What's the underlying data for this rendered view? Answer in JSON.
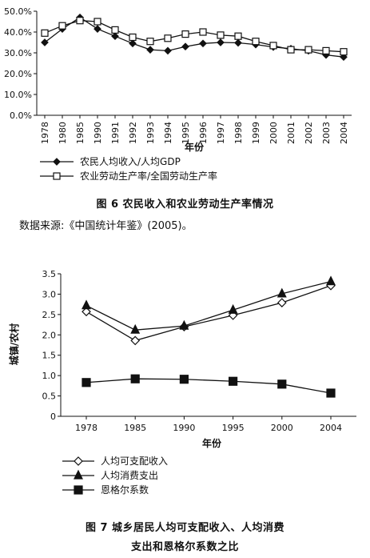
{
  "chart_data": [
    {
      "type": "line",
      "categories": [
        "1978",
        "1980",
        "1985",
        "1990",
        "1991",
        "1992",
        "1993",
        "1994",
        "1995",
        "1996",
        "1997",
        "1998",
        "1999",
        "2000",
        "2001",
        "2002",
        "2003",
        "2004"
      ],
      "y_ticks": [
        "0.0%",
        "10.0%",
        "20.0%",
        "30.0%",
        "40.0%",
        "50.0%"
      ],
      "ylim": [
        0,
        50
      ],
      "xlabel": "年份",
      "ylabel": "",
      "series": [
        {
          "name": "农民人均收入/人均GDP",
          "marker": "filled-diamond",
          "values": [
            35.0,
            41.5,
            47.0,
            41.5,
            38.0,
            34.5,
            31.5,
            31.0,
            33.0,
            34.5,
            35.0,
            34.8,
            34.0,
            32.8,
            32.0,
            31.0,
            29.0,
            28.0
          ]
        },
        {
          "name": "农业劳动生产率/全国劳动生产率",
          "marker": "open-square",
          "values": [
            39.5,
            43.0,
            45.5,
            45.0,
            41.0,
            37.5,
            35.5,
            37.0,
            39.0,
            40.0,
            38.5,
            38.0,
            35.5,
            33.5,
            31.5,
            31.5,
            31.0,
            30.5
          ]
        }
      ],
      "legend_position": "bottom",
      "grid": false,
      "caption": "图 6   农民收入和农业劳动生产率情况",
      "source": "数据来源:《中国统计年鉴》(2005)。"
    },
    {
      "type": "line",
      "categories": [
        "1978",
        "1985",
        "1990",
        "1995",
        "2000",
        "2004"
      ],
      "y_ticks": [
        "0",
        "0.5",
        "1.0",
        "1.5",
        "2.0",
        "2.5",
        "3.0",
        "3.5"
      ],
      "ylim": [
        0,
        3.5
      ],
      "xlabel": "年份",
      "ylabel": "城镇/农村",
      "series": [
        {
          "name": "人均可支配收入",
          "marker": "open-diamond",
          "values": [
            2.57,
            1.86,
            2.2,
            2.48,
            2.79,
            3.21
          ]
        },
        {
          "name": "人均消费支出",
          "marker": "filled-triangle",
          "values": [
            2.72,
            2.12,
            2.22,
            2.61,
            3.01,
            3.31
          ]
        },
        {
          "name": "恩格尔系数",
          "marker": "filled-square",
          "values": [
            0.83,
            0.92,
            0.91,
            0.86,
            0.79,
            0.57
          ]
        }
      ],
      "legend_position": "bottom",
      "grid": false,
      "caption_lines": [
        "图 7   城乡居民人均可支配收入、人均消费",
        "支出和恩格尔系数之比"
      ]
    }
  ]
}
